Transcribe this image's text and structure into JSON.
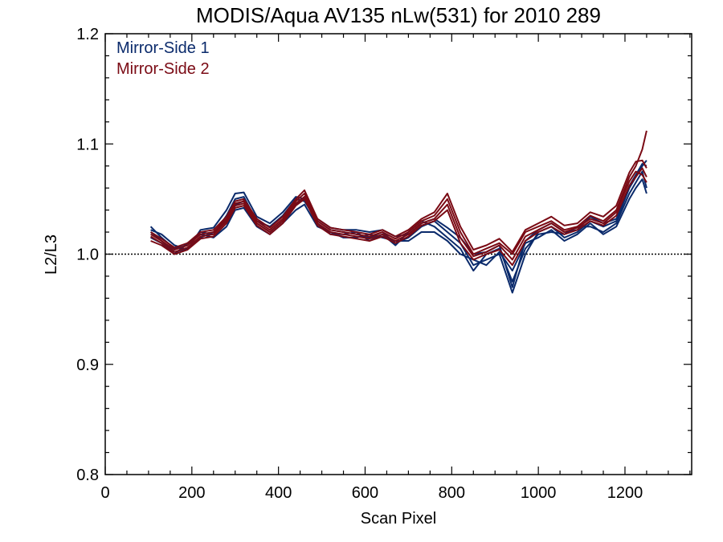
{
  "chart_data": {
    "type": "line",
    "title": "MODIS/Aqua AV135 nLw(531) for 2010 289",
    "xlabel": "Scan Pixel",
    "ylabel": "L2/L3",
    "xlim": [
      0,
      1354
    ],
    "ylim": [
      0.8,
      1.2
    ],
    "x_ticks": [
      0,
      200,
      400,
      600,
      800,
      1000,
      1200
    ],
    "x_tick_labels": [
      "0",
      "200",
      "400",
      "600",
      "800",
      "1000",
      "1200"
    ],
    "y_ticks": [
      0.8,
      0.9,
      1.0,
      1.1,
      1.2
    ],
    "y_tick_labels": [
      "0.8",
      "0.9",
      "1.0",
      "1.1",
      "1.2"
    ],
    "reference_line": 1.0,
    "legend_placement": "top-left",
    "legend": [
      {
        "label": "Mirror-Side 1",
        "color": "#0a2a6b"
      },
      {
        "label": "Mirror-Side 2",
        "color": "#7a0a14"
      }
    ],
    "x": [
      105,
      130,
      160,
      190,
      220,
      250,
      280,
      300,
      320,
      350,
      380,
      410,
      440,
      460,
      490,
      520,
      550,
      580,
      610,
      640,
      670,
      700,
      730,
      760,
      790,
      820,
      850,
      880,
      910,
      940,
      970,
      1000,
      1030,
      1060,
      1090,
      1120,
      1150,
      1180,
      1210,
      1225,
      1240,
      1250
    ],
    "series": [
      {
        "color": "#0a2a6b",
        "values": [
          1.025,
          1.015,
          1.005,
          1.008,
          1.02,
          1.018,
          1.035,
          1.05,
          1.052,
          1.03,
          1.025,
          1.035,
          1.05,
          1.048,
          1.03,
          1.022,
          1.02,
          1.018,
          1.015,
          1.02,
          1.01,
          1.015,
          1.025,
          1.03,
          1.02,
          1.01,
          0.99,
          0.995,
          1.0,
          0.965,
          1.0,
          1.02,
          1.025,
          1.015,
          1.02,
          1.03,
          1.025,
          1.03,
          1.06,
          1.07,
          1.08,
          1.085
        ]
      },
      {
        "color": "#0a2a6b",
        "values": [
          1.02,
          1.012,
          1.002,
          1.005,
          1.015,
          1.02,
          1.03,
          1.045,
          1.048,
          1.028,
          1.02,
          1.03,
          1.045,
          1.052,
          1.028,
          1.018,
          1.018,
          1.02,
          1.012,
          1.018,
          1.008,
          1.02,
          1.03,
          1.025,
          1.015,
          1.005,
          0.985,
          1.0,
          1.005,
          0.975,
          1.005,
          1.018,
          1.02,
          1.018,
          1.025,
          1.025,
          1.02,
          1.028,
          1.055,
          1.065,
          1.075,
          1.06
        ]
      },
      {
        "color": "#0a2a6b",
        "values": [
          1.015,
          1.01,
          1.0,
          1.01,
          1.018,
          1.015,
          1.025,
          1.04,
          1.042,
          1.025,
          1.018,
          1.028,
          1.04,
          1.045,
          1.025,
          1.02,
          1.015,
          1.015,
          1.018,
          1.015,
          1.012,
          1.012,
          1.02,
          1.02,
          1.012,
          1.0,
          0.995,
          0.99,
          1.002,
          0.985,
          1.01,
          1.015,
          1.022,
          1.012,
          1.018,
          1.028,
          1.018,
          1.025,
          1.05,
          1.06,
          1.068,
          1.055
        ]
      },
      {
        "color": "#0a2a6b",
        "values": [
          1.022,
          1.018,
          1.008,
          1.004,
          1.022,
          1.024,
          1.04,
          1.055,
          1.056,
          1.034,
          1.028,
          1.038,
          1.052,
          1.05,
          1.032,
          1.024,
          1.022,
          1.022,
          1.02,
          1.022,
          1.016,
          1.018,
          1.028,
          1.032,
          1.024,
          1.015,
          1.0,
          1.002,
          1.008,
          0.97,
          1.012,
          1.022,
          1.028,
          1.02,
          1.022,
          1.034,
          1.028,
          1.032,
          1.062,
          1.072,
          1.082,
          1.08
        ]
      },
      {
        "color": "#7a0a14",
        "values": [
          1.018,
          1.012,
          1.004,
          1.008,
          1.018,
          1.02,
          1.032,
          1.046,
          1.048,
          1.03,
          1.022,
          1.032,
          1.048,
          1.055,
          1.03,
          1.022,
          1.02,
          1.018,
          1.016,
          1.02,
          1.014,
          1.02,
          1.03,
          1.035,
          1.05,
          1.02,
          1.0,
          1.005,
          1.01,
          1.0,
          1.02,
          1.025,
          1.03,
          1.022,
          1.025,
          1.035,
          1.03,
          1.04,
          1.07,
          1.08,
          1.095,
          1.112
        ]
      },
      {
        "color": "#7a0a14",
        "values": [
          1.012,
          1.008,
          1.0,
          1.004,
          1.014,
          1.016,
          1.028,
          1.042,
          1.044,
          1.026,
          1.018,
          1.028,
          1.044,
          1.05,
          1.026,
          1.018,
          1.016,
          1.014,
          1.012,
          1.016,
          1.01,
          1.016,
          1.026,
          1.03,
          1.04,
          1.01,
          0.995,
          1.0,
          1.004,
          0.99,
          1.012,
          1.02,
          1.025,
          1.018,
          1.022,
          1.03,
          1.026,
          1.035,
          1.062,
          1.07,
          1.078,
          1.07
        ]
      },
      {
        "color": "#7a0a14",
        "values": [
          1.016,
          1.01,
          1.002,
          1.006,
          1.016,
          1.018,
          1.03,
          1.044,
          1.046,
          1.028,
          1.02,
          1.03,
          1.046,
          1.052,
          1.028,
          1.02,
          1.018,
          1.016,
          1.014,
          1.018,
          1.012,
          1.018,
          1.028,
          1.032,
          1.045,
          1.015,
          0.998,
          1.002,
          1.008,
          0.995,
          1.016,
          1.022,
          1.028,
          1.02,
          1.024,
          1.032,
          1.028,
          1.038,
          1.066,
          1.075,
          1.072,
          1.065
        ]
      },
      {
        "color": "#7a0a14",
        "values": [
          1.02,
          1.014,
          1.006,
          1.01,
          1.02,
          1.022,
          1.034,
          1.048,
          1.05,
          1.032,
          1.024,
          1.034,
          1.05,
          1.058,
          1.032,
          1.024,
          1.022,
          1.02,
          1.018,
          1.022,
          1.016,
          1.022,
          1.032,
          1.038,
          1.055,
          1.025,
          1.004,
          1.008,
          1.014,
          1.002,
          1.022,
          1.028,
          1.034,
          1.026,
          1.028,
          1.038,
          1.034,
          1.044,
          1.074,
          1.084,
          1.085,
          1.078
        ]
      }
    ]
  }
}
